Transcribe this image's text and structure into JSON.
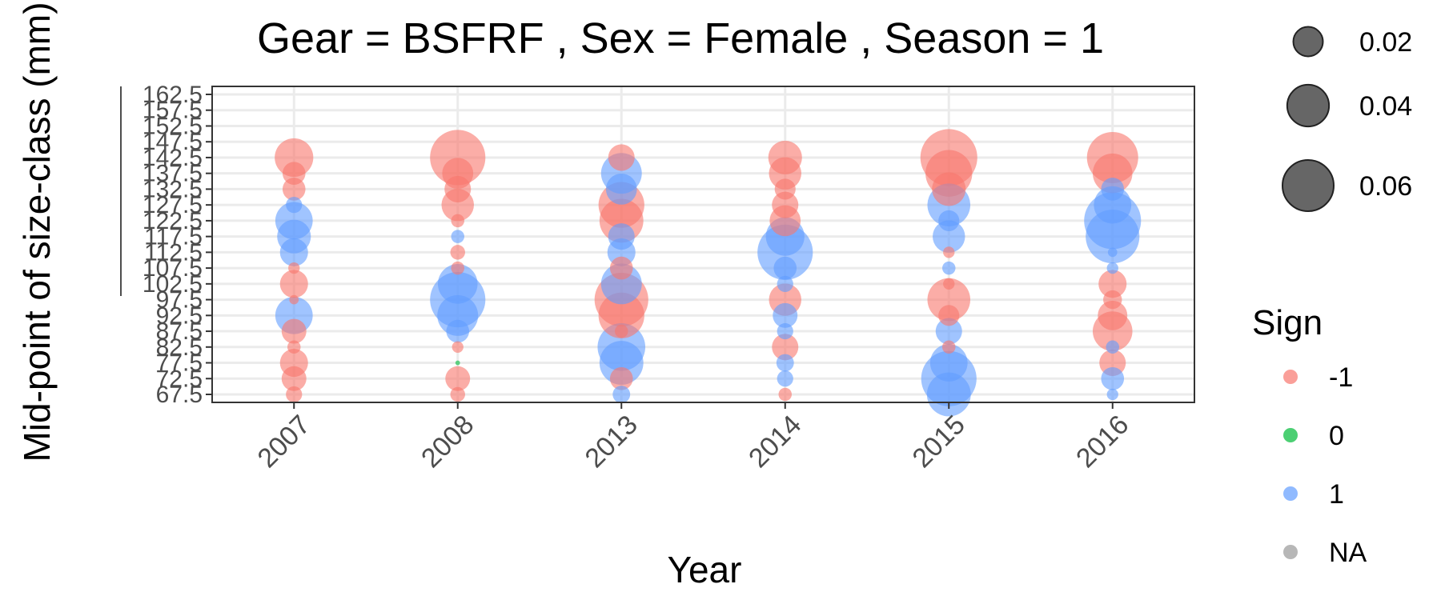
{
  "chart_data": {
    "type": "scatter",
    "title": "Gear = BSFRF , Sex = Female , Season = 1",
    "xlabel": "Year",
    "ylabel": "Mid-point of size-class (mm)",
    "grid": true,
    "categories": [
      "2007",
      "2008",
      "2013",
      "2014",
      "2015",
      "2016"
    ],
    "y_ticks": [
      67.5,
      72.5,
      77.5,
      82.5,
      87.5,
      92.5,
      97.5,
      102.5,
      107.5,
      112.5,
      117.5,
      122.5,
      127.5,
      132.5,
      137.5,
      142.5,
      147.5,
      152.5,
      157.5,
      162.5
    ],
    "ylim": [
      67.5,
      162.5
    ],
    "size_legend": {
      "title": "",
      "values": [
        0.02,
        0.04,
        0.06
      ],
      "labels": [
        "0.02",
        "0.04",
        "0.06"
      ]
    },
    "color_legend": {
      "title": "Sign",
      "entries": [
        {
          "label": "-1",
          "color": "#F8766D"
        },
        {
          "label": "0",
          "color": "#00BA38"
        },
        {
          "label": "1",
          "color": "#619CFF"
        },
        {
          "label": "NA",
          "color": "#999999"
        }
      ]
    },
    "points": [
      {
        "x": "2007",
        "y": 67.5,
        "size": 0.006,
        "sign": -1
      },
      {
        "x": "2007",
        "y": 72.5,
        "size": 0.014,
        "sign": -1
      },
      {
        "x": "2007",
        "y": 77.5,
        "size": 0.018,
        "sign": -1
      },
      {
        "x": "2007",
        "y": 82.5,
        "size": 0.004,
        "sign": -1
      },
      {
        "x": "2007",
        "y": 87.5,
        "size": 0.014,
        "sign": -1
      },
      {
        "x": "2007",
        "y": 92.5,
        "size": 0.032,
        "sign": 1
      },
      {
        "x": "2007",
        "y": 97.5,
        "size": 0.002,
        "sign": -1
      },
      {
        "x": "2007",
        "y": 102.5,
        "size": 0.018,
        "sign": -1
      },
      {
        "x": "2007",
        "y": 107.5,
        "size": 0.003,
        "sign": -1
      },
      {
        "x": "2007",
        "y": 112.5,
        "size": 0.018,
        "sign": 1
      },
      {
        "x": "2007",
        "y": 117.5,
        "size": 0.026,
        "sign": 1
      },
      {
        "x": "2007",
        "y": 122.5,
        "size": 0.032,
        "sign": 1
      },
      {
        "x": "2007",
        "y": 127.5,
        "size": 0.006,
        "sign": 1
      },
      {
        "x": "2007",
        "y": 132.5,
        "size": 0.012,
        "sign": -1
      },
      {
        "x": "2007",
        "y": 137.5,
        "size": 0.012,
        "sign": -1
      },
      {
        "x": "2007",
        "y": 142.5,
        "size": 0.034,
        "sign": -1
      },
      {
        "x": "2008",
        "y": 67.5,
        "size": 0.005,
        "sign": -1
      },
      {
        "x": "2008",
        "y": 72.5,
        "size": 0.014,
        "sign": -1
      },
      {
        "x": "2008",
        "y": 77.5,
        "size": 0.0005,
        "sign": 0
      },
      {
        "x": "2008",
        "y": 82.5,
        "size": 0.003,
        "sign": -1
      },
      {
        "x": "2008",
        "y": 87.5,
        "size": 0.012,
        "sign": 1
      },
      {
        "x": "2008",
        "y": 92.5,
        "size": 0.038,
        "sign": 1
      },
      {
        "x": "2008",
        "y": 97.5,
        "size": 0.07,
        "sign": 1
      },
      {
        "x": "2008",
        "y": 102.5,
        "size": 0.036,
        "sign": 1
      },
      {
        "x": "2008",
        "y": 107.5,
        "size": 0.004,
        "sign": -1
      },
      {
        "x": "2008",
        "y": 112.5,
        "size": 0.005,
        "sign": -1
      },
      {
        "x": "2008",
        "y": 117.5,
        "size": 0.004,
        "sign": 1
      },
      {
        "x": "2008",
        "y": 122.5,
        "size": 0.004,
        "sign": -1
      },
      {
        "x": "2008",
        "y": 127.5,
        "size": 0.024,
        "sign": -1
      },
      {
        "x": "2008",
        "y": 132.5,
        "size": 0.016,
        "sign": -1
      },
      {
        "x": "2008",
        "y": 137.5,
        "size": 0.022,
        "sign": -1
      },
      {
        "x": "2008",
        "y": 142.5,
        "size": 0.07,
        "sign": -1
      },
      {
        "x": "2013",
        "y": 67.5,
        "size": 0.007,
        "sign": 1
      },
      {
        "x": "2013",
        "y": 72.5,
        "size": 0.012,
        "sign": -1
      },
      {
        "x": "2013",
        "y": 77.5,
        "size": 0.044,
        "sign": 1
      },
      {
        "x": "2013",
        "y": 82.5,
        "size": 0.052,
        "sign": 1
      },
      {
        "x": "2013",
        "y": 87.5,
        "size": 0.004,
        "sign": -1
      },
      {
        "x": "2013",
        "y": 92.5,
        "size": 0.048,
        "sign": -1
      },
      {
        "x": "2013",
        "y": 97.5,
        "size": 0.066,
        "sign": -1
      },
      {
        "x": "2013",
        "y": 102.5,
        "size": 0.038,
        "sign": 1
      },
      {
        "x": "2013",
        "y": 107.5,
        "size": 0.012,
        "sign": -1
      },
      {
        "x": "2013",
        "y": 112.5,
        "size": 0.018,
        "sign": 1
      },
      {
        "x": "2013",
        "y": 117.5,
        "size": 0.016,
        "sign": 1
      },
      {
        "x": "2013",
        "y": 122.5,
        "size": 0.044,
        "sign": -1
      },
      {
        "x": "2013",
        "y": 127.5,
        "size": 0.048,
        "sign": -1
      },
      {
        "x": "2013",
        "y": 132.5,
        "size": 0.022,
        "sign": 1
      },
      {
        "x": "2013",
        "y": 137.5,
        "size": 0.038,
        "sign": 1
      },
      {
        "x": "2013",
        "y": 142.5,
        "size": 0.016,
        "sign": -1
      },
      {
        "x": "2014",
        "y": 67.5,
        "size": 0.004,
        "sign": -1
      },
      {
        "x": "2014",
        "y": 72.5,
        "size": 0.006,
        "sign": 1
      },
      {
        "x": "2014",
        "y": 77.5,
        "size": 0.007,
        "sign": 1
      },
      {
        "x": "2014",
        "y": 82.5,
        "size": 0.016,
        "sign": -1
      },
      {
        "x": "2014",
        "y": 87.5,
        "size": 0.006,
        "sign": 1
      },
      {
        "x": "2014",
        "y": 92.5,
        "size": 0.014,
        "sign": 1
      },
      {
        "x": "2014",
        "y": 97.5,
        "size": 0.024,
        "sign": -1
      },
      {
        "x": "2014",
        "y": 102.5,
        "size": 0.006,
        "sign": 1
      },
      {
        "x": "2014",
        "y": 107.5,
        "size": 0.012,
        "sign": 1
      },
      {
        "x": "2014",
        "y": 112.5,
        "size": 0.07,
        "sign": 1
      },
      {
        "x": "2014",
        "y": 117.5,
        "size": 0.034,
        "sign": 1
      },
      {
        "x": "2014",
        "y": 122.5,
        "size": 0.022,
        "sign": -1
      },
      {
        "x": "2014",
        "y": 127.5,
        "size": 0.016,
        "sign": -1
      },
      {
        "x": "2014",
        "y": 132.5,
        "size": 0.01,
        "sign": -1
      },
      {
        "x": "2014",
        "y": 137.5,
        "size": 0.024,
        "sign": -1
      },
      {
        "x": "2014",
        "y": 142.5,
        "size": 0.026,
        "sign": -1
      },
      {
        "x": "2015",
        "y": 67.5,
        "size": 0.044,
        "sign": 1
      },
      {
        "x": "2015",
        "y": 72.5,
        "size": 0.07,
        "sign": 1
      },
      {
        "x": "2015",
        "y": 77.5,
        "size": 0.032,
        "sign": 1
      },
      {
        "x": "2015",
        "y": 82.5,
        "size": 0.004,
        "sign": -1
      },
      {
        "x": "2015",
        "y": 87.5,
        "size": 0.016,
        "sign": 1
      },
      {
        "x": "2015",
        "y": 92.5,
        "size": 0.01,
        "sign": -1
      },
      {
        "x": "2015",
        "y": 97.5,
        "size": 0.042,
        "sign": -1
      },
      {
        "x": "2015",
        "y": 102.5,
        "size": 0.003,
        "sign": -1
      },
      {
        "x": "2015",
        "y": 107.5,
        "size": 0.004,
        "sign": 1
      },
      {
        "x": "2015",
        "y": 112.5,
        "size": 0.003,
        "sign": -1
      },
      {
        "x": "2015",
        "y": 117.5,
        "size": 0.024,
        "sign": 1
      },
      {
        "x": "2015",
        "y": 122.5,
        "size": 0.01,
        "sign": 1
      },
      {
        "x": "2015",
        "y": 127.5,
        "size": 0.042,
        "sign": 1
      },
      {
        "x": "2015",
        "y": 132.5,
        "size": 0.026,
        "sign": -1
      },
      {
        "x": "2015",
        "y": 137.5,
        "size": 0.05,
        "sign": -1
      },
      {
        "x": "2015",
        "y": 142.5,
        "size": 0.074,
        "sign": -1
      },
      {
        "x": "2016",
        "y": 67.5,
        "size": 0.003,
        "sign": 1
      },
      {
        "x": "2016",
        "y": 72.5,
        "size": 0.012,
        "sign": 1
      },
      {
        "x": "2016",
        "y": 77.5,
        "size": 0.016,
        "sign": -1
      },
      {
        "x": "2016",
        "y": 82.5,
        "size": 0.004,
        "sign": 1
      },
      {
        "x": "2016",
        "y": 87.5,
        "size": 0.036,
        "sign": -1
      },
      {
        "x": "2016",
        "y": 92.5,
        "size": 0.02,
        "sign": -1
      },
      {
        "x": "2016",
        "y": 97.5,
        "size": 0.008,
        "sign": -1
      },
      {
        "x": "2016",
        "y": 102.5,
        "size": 0.018,
        "sign": -1
      },
      {
        "x": "2016",
        "y": 107.5,
        "size": 0.003,
        "sign": 1
      },
      {
        "x": "2016",
        "y": 112.5,
        "size": 0.002,
        "sign": 1
      },
      {
        "x": "2016",
        "y": 117.5,
        "size": 0.066,
        "sign": 1
      },
      {
        "x": "2016",
        "y": 122.5,
        "size": 0.074,
        "sign": 1
      },
      {
        "x": "2016",
        "y": 127.5,
        "size": 0.032,
        "sign": 1
      },
      {
        "x": "2016",
        "y": 132.5,
        "size": 0.012,
        "sign": 1
      },
      {
        "x": "2016",
        "y": 137.5,
        "size": 0.036,
        "sign": -1
      },
      {
        "x": "2016",
        "y": 142.5,
        "size": 0.06,
        "sign": -1
      }
    ]
  }
}
